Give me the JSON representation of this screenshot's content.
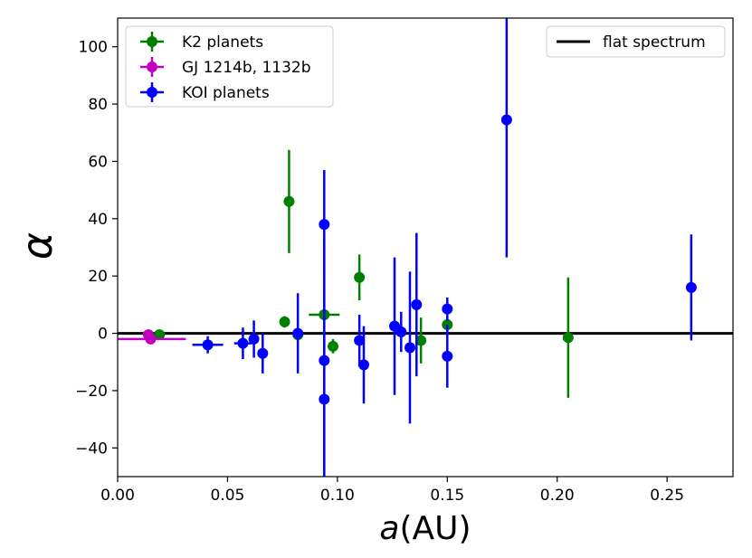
{
  "chart_data": {
    "type": "scatter",
    "title": "",
    "xlabel_italic": "a",
    "xlabel_unit": "(AU)",
    "ylabel": "α",
    "xlim": [
      0.0,
      0.28
    ],
    "ylim": [
      -50,
      110
    ],
    "xticks": [
      0.0,
      0.05,
      0.1,
      0.15,
      0.2,
      0.25
    ],
    "xtick_labels": [
      "0.00",
      "0.05",
      "0.10",
      "0.15",
      "0.20",
      "0.25"
    ],
    "yticks": [
      -40,
      -20,
      0,
      20,
      40,
      60,
      80,
      100
    ],
    "ytick_labels": [
      "−40",
      "−20",
      "0",
      "20",
      "40",
      "60",
      "80",
      "100"
    ],
    "grid": false,
    "series": [
      {
        "name": "K2 planets",
        "color": "#008000",
        "points": [
          {
            "x": 0.019,
            "y": -0.5,
            "xerr": 0.0,
            "yerr": 1.5
          },
          {
            "x": 0.076,
            "y": 4.0,
            "xerr": 0.002,
            "yerr": 2.0
          },
          {
            "x": 0.078,
            "y": 46.0,
            "xerr": 0.0,
            "yerr": 18.0
          },
          {
            "x": 0.082,
            "y": -0.5,
            "xerr": 0.0,
            "yerr": 1.5
          },
          {
            "x": 0.094,
            "y": 6.5,
            "xerr": 0.007,
            "yerr": 2.0
          },
          {
            "x": 0.098,
            "y": -4.5,
            "xerr": 0.0,
            "yerr": 2.5
          },
          {
            "x": 0.11,
            "y": 19.5,
            "xerr": 0.0,
            "yerr": 8.0
          },
          {
            "x": 0.138,
            "y": -2.5,
            "xerr": 0.0,
            "yerr": 8.0
          },
          {
            "x": 0.15,
            "y": 3.0,
            "xerr": 0.0,
            "yerr": 3.0
          },
          {
            "x": 0.205,
            "y": -1.5,
            "xerr": 0.0,
            "yerr": 21.0
          }
        ]
      },
      {
        "name": "GJ 1214b, 1132b",
        "color": "#BF00BF",
        "points": [
          {
            "x": 0.014,
            "y": -0.5,
            "xerr": 0.0,
            "yerr": 0.5
          },
          {
            "x": 0.015,
            "y": -2.0,
            "xerr": 0.016,
            "yerr": 0.5
          }
        ]
      },
      {
        "name": "KOI planets",
        "color": "#0000FF",
        "points": [
          {
            "x": 0.041,
            "y": -4.0,
            "xerr": 0.007,
            "yerr": 3.0
          },
          {
            "x": 0.057,
            "y": -3.5,
            "xerr": 0.004,
            "yerr": 5.5
          },
          {
            "x": 0.062,
            "y": -2.0,
            "xerr": 0.0,
            "yerr": 6.5
          },
          {
            "x": 0.066,
            "y": -7.0,
            "xerr": 0.0,
            "yerr": 7.0
          },
          {
            "x": 0.082,
            "y": 0.0,
            "xerr": 0.0,
            "yerr": 14.0
          },
          {
            "x": 0.094,
            "y": 38.0,
            "xerr": 0.0,
            "yerr": 19.0
          },
          {
            "x": 0.094,
            "y": -9.5,
            "xerr": 0.0,
            "yerr": 43.0
          },
          {
            "x": 0.094,
            "y": -23.0,
            "xerr": 0.0,
            "yerr": 43.0
          },
          {
            "x": 0.11,
            "y": -2.5,
            "xerr": 0.0,
            "yerr": 9.0
          },
          {
            "x": 0.112,
            "y": -11.0,
            "xerr": 0.0,
            "yerr": 13.5
          },
          {
            "x": 0.126,
            "y": 2.5,
            "xerr": 0.0,
            "yerr": 24.0
          },
          {
            "x": 0.129,
            "y": 0.5,
            "xerr": 0.0,
            "yerr": 7.0
          },
          {
            "x": 0.133,
            "y": -5.0,
            "xerr": 0.0,
            "yerr": 26.5
          },
          {
            "x": 0.136,
            "y": 10.0,
            "xerr": 0.0,
            "yerr": 25.0
          },
          {
            "x": 0.15,
            "y": 8.5,
            "xerr": 0.0,
            "yerr": 4.0
          },
          {
            "x": 0.15,
            "y": -8.0,
            "xerr": 0.0,
            "yerr": 11.0
          },
          {
            "x": 0.177,
            "y": 74.5,
            "xerr": 0.0,
            "yerr": 48.0
          },
          {
            "x": 0.261,
            "y": 16.0,
            "xerr": 0.0,
            "yerr": 18.5
          }
        ]
      }
    ],
    "reference_lines": [
      {
        "name": "flat spectrum",
        "y": 0,
        "color": "#000000"
      }
    ],
    "legends": [
      {
        "placement": "top-left",
        "entries": [
          "K2 planets",
          "GJ 1214b, 1132b",
          "KOI planets"
        ]
      },
      {
        "placement": "top-right",
        "entries": [
          "flat spectrum"
        ]
      }
    ]
  }
}
